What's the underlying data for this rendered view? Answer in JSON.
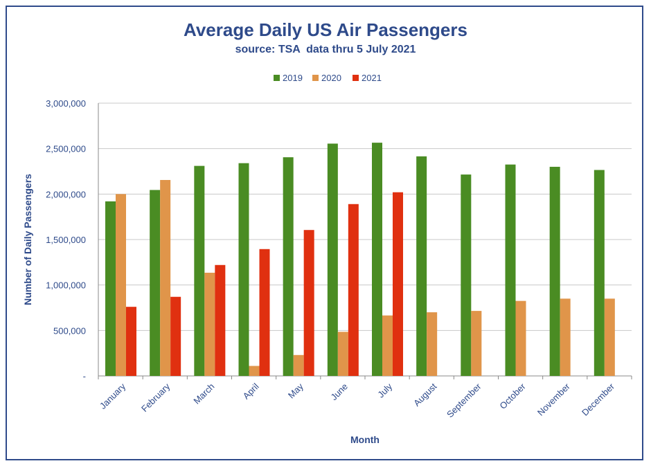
{
  "chart_data": {
    "type": "bar",
    "title": "Average Daily US Air Passengers",
    "subtitle": "source: TSA  data thru 5 July 2021",
    "xlabel": "Month",
    "ylabel": "Number of Daily Passengers",
    "categories": [
      "January",
      "February",
      "March",
      "April",
      "May",
      "June",
      "July",
      "August",
      "September",
      "October",
      "November",
      "December"
    ],
    "series": [
      {
        "name": "2019",
        "color": "#4a8c23",
        "values": [
          1920000,
          2045000,
          2310000,
          2340000,
          2405000,
          2555000,
          2565000,
          2415000,
          2215000,
          2325000,
          2300000,
          2265000
        ]
      },
      {
        "name": "2020",
        "color": "#e0954a",
        "values": [
          2000000,
          2155000,
          1135000,
          110000,
          230000,
          485000,
          665000,
          700000,
          715000,
          825000,
          850000,
          850000
        ]
      },
      {
        "name": "2021",
        "color": "#e03010",
        "values": [
          760000,
          870000,
          1220000,
          1395000,
          1605000,
          1890000,
          2020000,
          null,
          null,
          null,
          null,
          null
        ]
      }
    ],
    "ylim": [
      0,
      3000000
    ],
    "yticks": [
      0,
      500000,
      1000000,
      1500000,
      2000000,
      2500000,
      3000000
    ],
    "ytick_labels": [
      "-",
      "500,000",
      "1,000,000",
      "1,500,000",
      "2,000,000",
      "2,500,000",
      "3,000,000"
    ],
    "grid": true,
    "legend_position": "top"
  }
}
